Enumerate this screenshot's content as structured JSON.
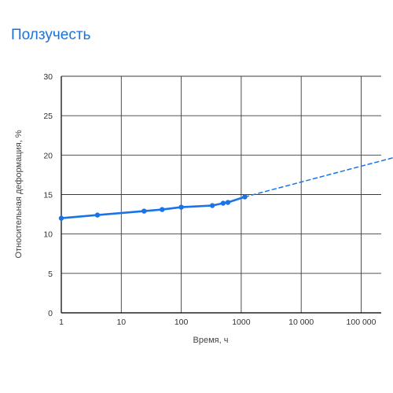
{
  "title": "Ползучесть",
  "chart_data": {
    "type": "line",
    "title": "Ползучесть",
    "xlabel": "Время, ч",
    "ylabel": "Относительная деформация, %",
    "xscale": "log",
    "xlim": [
      1,
      400000
    ],
    "ylim": [
      0,
      30
    ],
    "grid": true,
    "x_ticks": [
      1,
      10,
      100,
      1000,
      10000,
      100000
    ],
    "x_tick_labels": [
      "1",
      "10",
      "100",
      "1000",
      "10 000",
      "100 000"
    ],
    "y_ticks": [
      0,
      5,
      10,
      15,
      20,
      25,
      30
    ],
    "y_tick_labels": [
      "0",
      "5",
      "10",
      "15",
      "20",
      "25",
      "30"
    ],
    "series": [
      {
        "style": "solid",
        "markers": true,
        "color": "#1a73e8",
        "x": [
          1,
          4,
          24,
          48,
          100,
          330,
          500,
          600,
          1150
        ],
        "y": [
          12.0,
          12.4,
          12.9,
          13.1,
          13.4,
          13.6,
          13.9,
          14.0,
          14.7
        ]
      },
      {
        "style": "dashed",
        "markers": false,
        "color": "#1a73e8",
        "x": [
          1150,
          400000
        ],
        "y": [
          14.7,
          19.8
        ]
      }
    ]
  }
}
